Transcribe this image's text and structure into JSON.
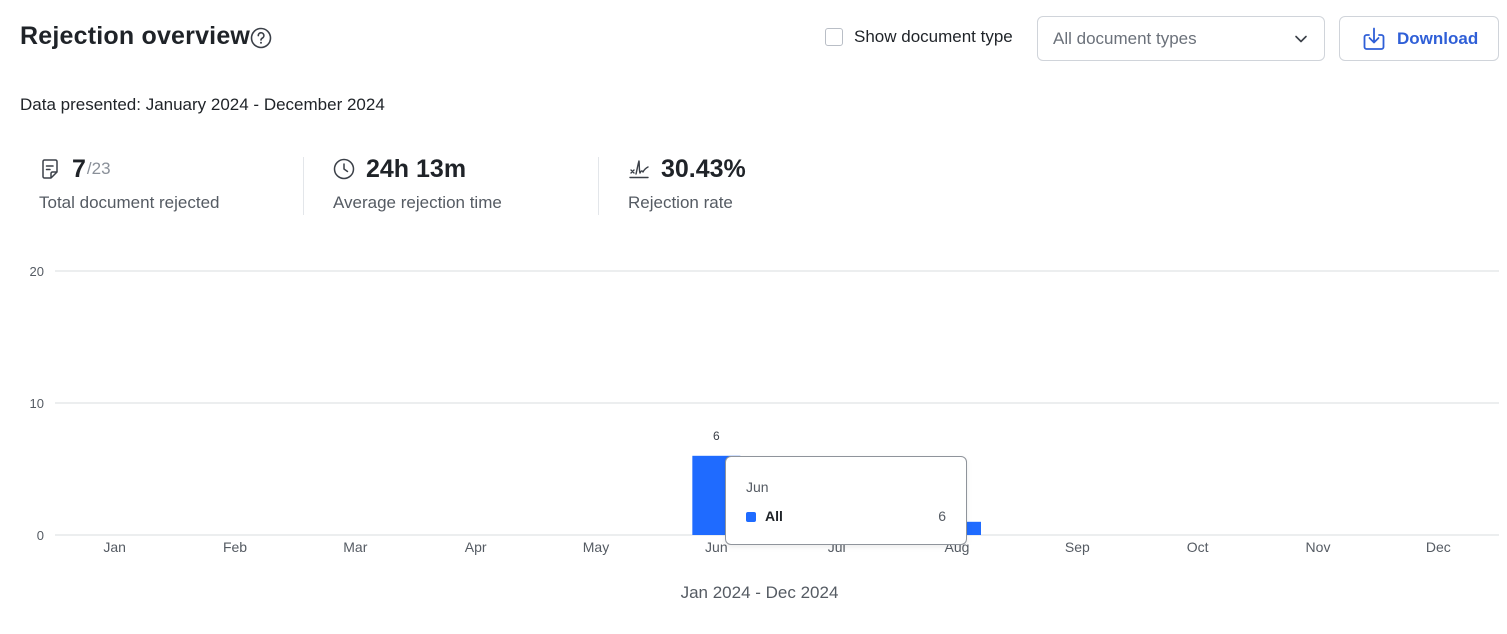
{
  "header": {
    "title": "Rejection overview",
    "help_icon": "help-circle-icon",
    "show_document_type_label": "Show document type",
    "show_document_type_checked": false,
    "document_type_select": "All document types",
    "download_label": "Download"
  },
  "range_text": "Data presented: January 2024 - December 2024",
  "stats": {
    "total_rejected": {
      "icon": "document-icon",
      "value": "7",
      "suffix": "/23",
      "label": "Total document rejected"
    },
    "average_time": {
      "icon": "clock-icon",
      "value": "24h 13m",
      "label": "Average rejection time"
    },
    "rejection_rate": {
      "icon": "signature-icon",
      "value": "30.43%",
      "label": "Rejection rate"
    }
  },
  "colors": {
    "accent": "#2f5fd7",
    "bar": "#1f6bff",
    "grid": "#d9dcdf"
  },
  "chart_data": {
    "type": "bar",
    "categories": [
      "Jan",
      "Feb",
      "Mar",
      "Apr",
      "May",
      "Jun",
      "Jul",
      "Aug",
      "Sep",
      "Oct",
      "Nov",
      "Dec"
    ],
    "series": [
      {
        "name": "All",
        "values": [
          0,
          0,
          0,
          0,
          0,
          6,
          0,
          1,
          0,
          0,
          0,
          0
        ]
      }
    ],
    "data_labels": {
      "Jun": "6"
    },
    "y_ticks": [
      0,
      10,
      20
    ],
    "ylim": [
      0,
      20
    ],
    "xlabel": "Jan 2024 - Dec 2024",
    "ylabel": "",
    "grid": true,
    "tooltip": {
      "category": "Jun",
      "series": "All",
      "value": "6"
    }
  }
}
